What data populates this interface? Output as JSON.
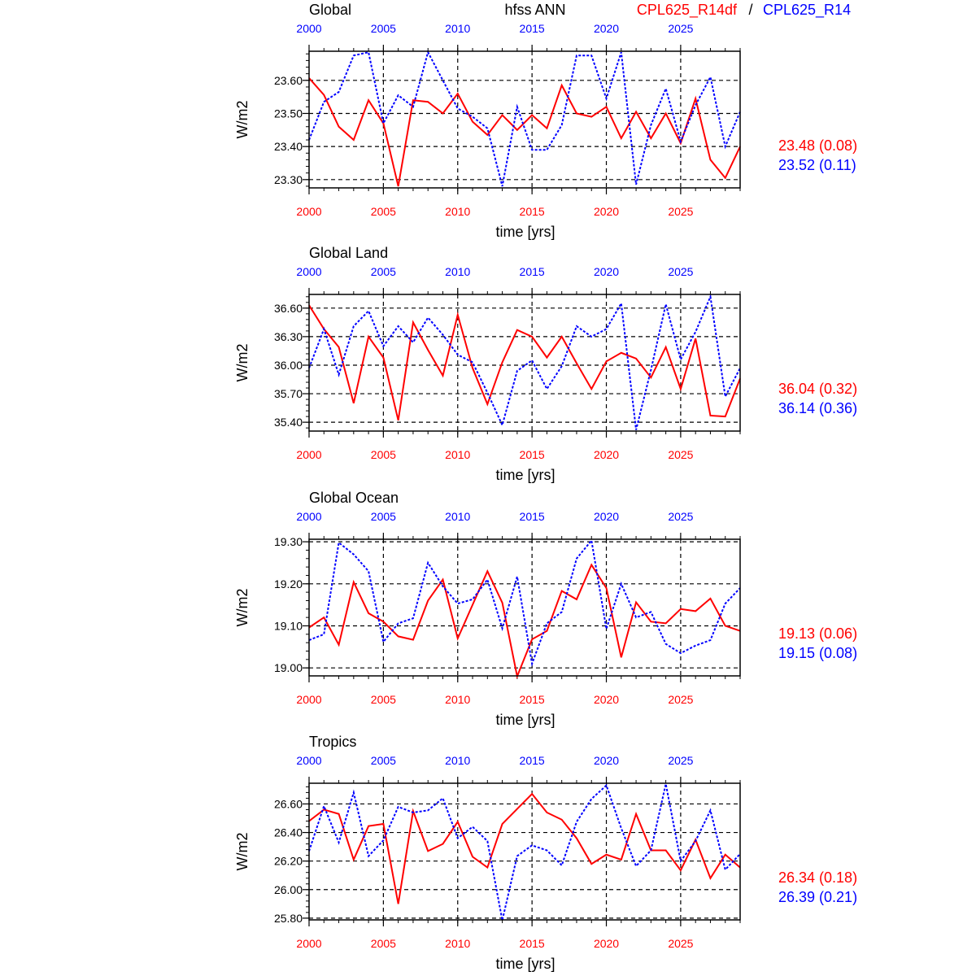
{
  "header": {
    "variable_title": "hfss ANN",
    "legend_case1": "CPL625_R14df",
    "legend_separator": "/",
    "legend_case2": "CPL625_R14"
  },
  "colors": {
    "case1": "#ff0000",
    "case2": "#0000ff",
    "axis": "#000000"
  },
  "chart_data": [
    {
      "type": "line",
      "title": "Global",
      "xlabel": "time [yrs]",
      "ylabel": "W/m2",
      "x": [
        2000,
        2001,
        2002,
        2003,
        2004,
        2005,
        2006,
        2007,
        2008,
        2009,
        2010,
        2011,
        2012,
        2013,
        2014,
        2015,
        2016,
        2017,
        2018,
        2019,
        2020,
        2021,
        2022,
        2023,
        2024,
        2025,
        2026,
        2027,
        2028,
        2029
      ],
      "xlim": [
        2000,
        2029
      ],
      "xticks": [
        "2000",
        "2005",
        "2010",
        "2015",
        "2020",
        "2025"
      ],
      "ylim": [
        23.275,
        23.688
      ],
      "yticks": [
        "23.30",
        "23.40",
        "23.50",
        "23.60"
      ],
      "grid": true,
      "series": [
        {
          "name": "CPL625_R14df",
          "style": "solid",
          "stat": "23.48 (0.08)",
          "values": [
            23.607,
            23.556,
            23.46,
            23.42,
            23.54,
            23.47,
            23.28,
            23.54,
            23.535,
            23.5,
            23.56,
            23.475,
            23.435,
            23.495,
            23.45,
            23.495,
            23.455,
            23.585,
            23.5,
            23.49,
            23.52,
            23.425,
            23.505,
            23.425,
            23.5,
            23.41,
            23.545,
            23.36,
            23.305,
            23.4
          ]
        },
        {
          "name": "CPL625_R14",
          "style": "dotted",
          "stat": "23.52 (0.11)",
          "values": [
            23.42,
            23.535,
            23.565,
            23.675,
            23.685,
            23.47,
            23.555,
            23.52,
            23.685,
            23.6,
            23.515,
            23.49,
            23.455,
            23.28,
            23.52,
            23.39,
            23.39,
            23.465,
            23.675,
            23.675,
            23.545,
            23.685,
            23.285,
            23.465,
            23.575,
            23.415,
            23.525,
            23.61,
            23.4,
            23.505
          ]
        }
      ]
    },
    {
      "type": "line",
      "title": "Global Land",
      "xlabel": "time [yrs]",
      "ylabel": "W/m2",
      "x": [
        2000,
        2001,
        2002,
        2003,
        2004,
        2005,
        2006,
        2007,
        2008,
        2009,
        2010,
        2011,
        2012,
        2013,
        2014,
        2015,
        2016,
        2017,
        2018,
        2019,
        2020,
        2021,
        2022,
        2023,
        2024,
        2025,
        2026,
        2027,
        2028,
        2029
      ],
      "xlim": [
        2000,
        2029
      ],
      "xticks": [
        "2000",
        "2005",
        "2010",
        "2015",
        "2020",
        "2025"
      ],
      "ylim": [
        35.307,
        36.744
      ],
      "yticks": [
        "35.40",
        "35.70",
        "36.00",
        "36.30",
        "36.60"
      ],
      "grid": true,
      "series": [
        {
          "name": "CPL625_R14df",
          "style": "solid",
          "stat": "36.04 (0.32)",
          "values": [
            36.63,
            36.38,
            36.19,
            35.6,
            36.3,
            36.08,
            35.42,
            36.45,
            36.16,
            35.89,
            36.53,
            35.97,
            35.59,
            36.03,
            36.37,
            36.3,
            36.08,
            36.3,
            36.02,
            35.75,
            36.04,
            36.13,
            36.07,
            35.87,
            36.19,
            35.75,
            36.28,
            35.47,
            35.46,
            35.86
          ]
        },
        {
          "name": "CPL625_R14",
          "style": "dotted",
          "stat": "36.14 (0.36)",
          "values": [
            35.97,
            36.38,
            35.9,
            36.41,
            36.57,
            36.2,
            36.41,
            36.24,
            36.5,
            36.32,
            36.11,
            36.03,
            35.71,
            35.37,
            35.94,
            36.05,
            35.75,
            35.99,
            36.41,
            36.3,
            36.38,
            36.65,
            35.32,
            35.95,
            36.64,
            36.06,
            36.35,
            36.72,
            35.67,
            35.97
          ]
        }
      ]
    },
    {
      "type": "line",
      "title": "Global Ocean",
      "xlabel": "time [yrs]",
      "ylabel": "W/m2",
      "x": [
        2000,
        2001,
        2002,
        2003,
        2004,
        2005,
        2006,
        2007,
        2008,
        2009,
        2010,
        2011,
        2012,
        2013,
        2014,
        2015,
        2016,
        2017,
        2018,
        2019,
        2020,
        2021,
        2022,
        2023,
        2024,
        2025,
        2026,
        2027,
        2028,
        2029
      ],
      "xlim": [
        2000,
        2029
      ],
      "xticks": [
        "2000",
        "2005",
        "2010",
        "2015",
        "2020",
        "2025"
      ],
      "ylim": [
        18.981,
        19.306
      ],
      "yticks": [
        "19.00",
        "19.10",
        "19.20",
        "19.30"
      ],
      "grid": true,
      "series": [
        {
          "name": "CPL625_R14df",
          "style": "solid",
          "stat": "19.13 (0.06)",
          "values": [
            19.096,
            19.12,
            19.055,
            19.204,
            19.13,
            19.11,
            19.075,
            19.067,
            19.16,
            19.21,
            19.07,
            19.15,
            19.23,
            19.155,
            18.98,
            19.068,
            19.088,
            19.183,
            19.163,
            19.245,
            19.19,
            19.025,
            19.156,
            19.11,
            19.106,
            19.14,
            19.135,
            19.165,
            19.1,
            19.088
          ]
        },
        {
          "name": "CPL625_R14",
          "style": "dotted",
          "stat": "19.15 (0.08)",
          "values": [
            19.066,
            19.08,
            19.298,
            19.27,
            19.23,
            19.062,
            19.106,
            19.118,
            19.25,
            19.194,
            19.153,
            19.163,
            19.21,
            19.094,
            19.217,
            19.01,
            19.106,
            19.133,
            19.26,
            19.303,
            19.093,
            19.2,
            19.12,
            19.133,
            19.057,
            19.035,
            19.053,
            19.066,
            19.153,
            19.19
          ]
        }
      ]
    },
    {
      "type": "line",
      "title": "Tropics",
      "xlabel": "time [yrs]",
      "ylabel": "W/m2",
      "x": [
        2000,
        2001,
        2002,
        2003,
        2004,
        2005,
        2006,
        2007,
        2008,
        2009,
        2010,
        2011,
        2012,
        2013,
        2014,
        2015,
        2016,
        2017,
        2018,
        2019,
        2020,
        2021,
        2022,
        2023,
        2024,
        2025,
        2026,
        2027,
        2028,
        2029
      ],
      "xlim": [
        2000,
        2029
      ],
      "xticks": [
        "2000",
        "2005",
        "2010",
        "2015",
        "2020",
        "2025"
      ],
      "ylim": [
        25.788,
        26.745
      ],
      "yticks": [
        "25.80",
        "26.00",
        "26.20",
        "26.40",
        "26.60"
      ],
      "grid": true,
      "series": [
        {
          "name": "CPL625_R14df",
          "style": "solid",
          "stat": "26.34 (0.18)",
          "values": [
            26.48,
            26.56,
            26.53,
            26.21,
            26.445,
            26.46,
            25.9,
            26.55,
            26.27,
            26.32,
            26.475,
            26.23,
            26.155,
            26.46,
            26.565,
            26.67,
            26.54,
            26.49,
            26.36,
            26.18,
            26.245,
            26.21,
            26.53,
            26.275,
            26.275,
            26.135,
            26.35,
            26.08,
            26.245,
            26.155
          ]
        },
        {
          "name": "CPL625_R14",
          "style": "dotted",
          "stat": "26.39 (0.21)",
          "values": [
            26.27,
            26.585,
            26.33,
            26.68,
            26.235,
            26.345,
            26.58,
            26.54,
            26.555,
            26.64,
            26.36,
            26.44,
            26.34,
            25.785,
            26.235,
            26.31,
            26.275,
            26.17,
            26.475,
            26.635,
            26.73,
            26.43,
            26.165,
            26.275,
            26.74,
            26.2,
            26.34,
            26.555,
            26.14,
            26.25
          ]
        }
      ]
    }
  ]
}
